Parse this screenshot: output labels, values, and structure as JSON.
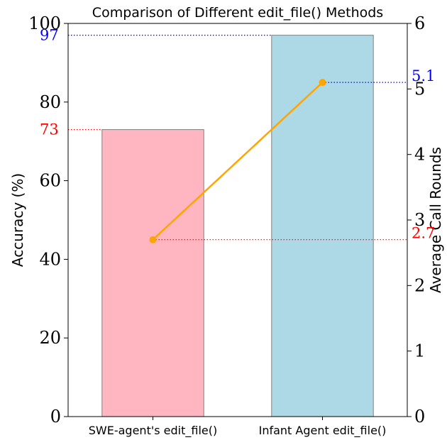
{
  "chart_data": {
    "type": "bar",
    "title": "Comparison of Different edit_file() Methods",
    "categories": [
      "SWE-agent's edit_file()",
      "Infant Agent edit_file()"
    ],
    "series": [
      {
        "name": "Accuracy (%)",
        "type": "bar",
        "axis": "left",
        "values": [
          73,
          97
        ],
        "colors": [
          "#ffb6c1",
          "#add8e6"
        ],
        "value_labels": [
          "73",
          "97"
        ]
      },
      {
        "name": "Average Call Rounds",
        "type": "line",
        "axis": "right",
        "values": [
          2.7,
          5.1
        ],
        "color": "#ffa500",
        "value_labels": [
          "2.7",
          "5.1"
        ]
      }
    ],
    "ylabel": "Accuracy (%)",
    "ylabel_right": "Average Call Rounds",
    "ylim": [
      0,
      100
    ],
    "ylim_right": [
      0,
      6
    ],
    "yticks": [
      0,
      20,
      40,
      60,
      80,
      100
    ],
    "yticks_right": [
      0,
      1,
      2,
      3,
      4,
      5,
      6
    ],
    "grid": false,
    "colors": {
      "left_annotation": "#ff0000",
      "right_annotation": "#0000ff",
      "bar_edge": "#808080"
    }
  }
}
